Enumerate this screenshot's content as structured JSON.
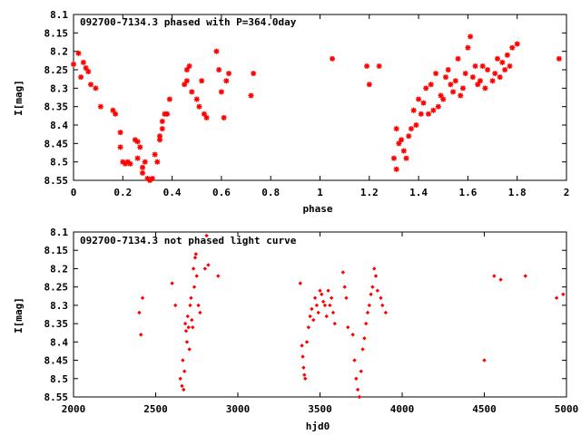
{
  "chart_data": [
    {
      "type": "scatter",
      "title": "092700-7134.3 phased with P=364.0day",
      "xlabel": "phase",
      "ylabel": "I[mag]",
      "xlim": [
        0,
        2
      ],
      "ylim": [
        8.55,
        8.1
      ],
      "y_inverted": true,
      "grid": false,
      "marker_color": "#ff0000",
      "marker": "asterisk",
      "x_ticks": [
        "0",
        "0.2",
        "0.4",
        "0.6",
        "0.8",
        "1",
        "1.2",
        "1.4",
        "1.6",
        "1.8",
        "2"
      ],
      "y_ticks": [
        "8.1",
        "8.15",
        "8.2",
        "8.25",
        "8.3",
        "8.35",
        "8.4",
        "8.45",
        "8.5",
        "8.55"
      ],
      "series": [
        {
          "x": [
            0.0,
            0.02,
            0.03,
            0.04,
            0.05,
            0.06,
            0.07,
            0.09,
            0.11,
            0.16,
            0.17,
            0.19,
            0.19,
            0.2,
            0.21,
            0.22,
            0.23,
            0.25,
            0.26,
            0.26,
            0.27,
            0.28,
            0.28,
            0.29,
            0.3,
            0.31,
            0.32,
            0.33,
            0.34,
            0.35,
            0.35,
            0.36,
            0.36,
            0.37,
            0.38,
            0.39,
            0.45,
            0.46,
            0.46,
            0.47,
            0.48,
            0.5,
            0.51,
            0.52,
            0.53,
            0.54,
            0.58,
            0.59,
            0.6,
            0.61,
            0.62,
            0.63,
            0.72,
            0.73,
            1.05,
            1.19,
            1.2,
            1.24,
            1.3,
            1.31,
            1.31,
            1.32,
            1.33,
            1.34,
            1.35,
            1.36,
            1.37,
            1.38,
            1.39,
            1.4,
            1.41,
            1.42,
            1.43,
            1.44,
            1.45,
            1.46,
            1.47,
            1.48,
            1.49,
            1.5,
            1.51,
            1.52,
            1.53,
            1.54,
            1.55,
            1.56,
            1.57,
            1.58,
            1.59,
            1.6,
            1.61,
            1.62,
            1.63,
            1.64,
            1.65,
            1.66,
            1.67,
            1.68,
            1.7,
            1.71,
            1.72,
            1.73,
            1.74,
            1.75,
            1.76,
            1.77,
            1.78,
            1.8,
            1.97
          ],
          "y": [
            8.235,
            8.205,
            8.27,
            8.23,
            8.245,
            8.255,
            8.29,
            8.3,
            8.35,
            8.36,
            8.37,
            8.42,
            8.46,
            8.5,
            8.505,
            8.5,
            8.505,
            8.44,
            8.445,
            8.49,
            8.46,
            8.515,
            8.53,
            8.5,
            8.545,
            8.55,
            8.545,
            8.48,
            8.5,
            8.43,
            8.44,
            8.39,
            8.41,
            8.37,
            8.37,
            8.33,
            8.29,
            8.25,
            8.28,
            8.24,
            8.31,
            8.33,
            8.35,
            8.28,
            8.37,
            8.38,
            8.2,
            8.25,
            8.31,
            8.38,
            8.28,
            8.26,
            8.32,
            8.26,
            8.22,
            8.24,
            8.29,
            8.24,
            8.49,
            8.52,
            8.41,
            8.45,
            8.44,
            8.47,
            8.49,
            8.43,
            8.41,
            8.36,
            8.4,
            8.33,
            8.37,
            8.34,
            8.3,
            8.37,
            8.29,
            8.36,
            8.26,
            8.35,
            8.32,
            8.33,
            8.27,
            8.25,
            8.29,
            8.31,
            8.28,
            8.22,
            8.32,
            8.3,
            8.26,
            8.19,
            8.16,
            8.27,
            8.24,
            8.29,
            8.28,
            8.24,
            8.3,
            8.25,
            8.28,
            8.26,
            8.22,
            8.27,
            8.23,
            8.25,
            8.21,
            8.24,
            8.19,
            8.18,
            8.22
          ]
        }
      ]
    },
    {
      "type": "scatter",
      "title": "092700-7134.3 not phased light curve",
      "xlabel": "hjd0",
      "ylabel": "I[mag]",
      "xlim": [
        2000,
        5000
      ],
      "ylim": [
        8.55,
        8.1
      ],
      "y_inverted": true,
      "grid": false,
      "marker_color": "#ff0000",
      "marker": "diamond",
      "x_ticks": [
        "2000",
        "2500",
        "3000",
        "3500",
        "4000",
        "4500",
        "5000"
      ],
      "y_ticks": [
        "8.1",
        "8.15",
        "8.2",
        "8.25",
        "8.3",
        "8.35",
        "8.4",
        "8.45",
        "8.5",
        "8.55"
      ],
      "series": [
        {
          "x": [
            2400,
            2410,
            2420,
            2600,
            2620,
            2650,
            2660,
            2665,
            2670,
            2675,
            2680,
            2685,
            2690,
            2695,
            2700,
            2705,
            2710,
            2715,
            2720,
            2725,
            2730,
            2735,
            2740,
            2745,
            2750,
            2760,
            2770,
            2800,
            2810,
            2820,
            2880,
            3380,
            3390,
            3395,
            3400,
            3405,
            3410,
            3420,
            3430,
            3440,
            3450,
            3460,
            3470,
            3480,
            3490,
            3500,
            3510,
            3520,
            3530,
            3540,
            3550,
            3560,
            3570,
            3580,
            3590,
            3640,
            3650,
            3660,
            3670,
            3700,
            3710,
            3720,
            3730,
            3740,
            3750,
            3760,
            3770,
            3780,
            3790,
            3800,
            3810,
            3820,
            3830,
            3840,
            3850,
            3870,
            3880,
            3900,
            4500,
            4560,
            4600,
            4750,
            4940,
            4980
          ],
          "y": [
            8.32,
            8.38,
            8.28,
            8.24,
            8.3,
            8.5,
            8.52,
            8.45,
            8.53,
            8.48,
            8.35,
            8.37,
            8.4,
            8.33,
            8.36,
            8.42,
            8.3,
            8.28,
            8.34,
            8.36,
            8.2,
            8.25,
            8.17,
            8.16,
            8.22,
            8.3,
            8.32,
            8.2,
            8.11,
            8.19,
            8.22,
            8.24,
            8.41,
            8.44,
            8.47,
            8.49,
            8.5,
            8.4,
            8.36,
            8.33,
            8.31,
            8.34,
            8.28,
            8.3,
            8.32,
            8.26,
            8.27,
            8.29,
            8.3,
            8.33,
            8.26,
            8.3,
            8.28,
            8.32,
            8.35,
            8.21,
            8.25,
            8.28,
            8.36,
            8.38,
            8.45,
            8.5,
            8.53,
            8.55,
            8.48,
            8.42,
            8.39,
            8.35,
            8.32,
            8.3,
            8.27,
            8.25,
            8.2,
            8.22,
            8.26,
            8.28,
            8.3,
            8.32,
            8.45,
            8.22,
            8.23,
            8.22,
            8.28,
            8.27
          ]
        }
      ]
    }
  ]
}
